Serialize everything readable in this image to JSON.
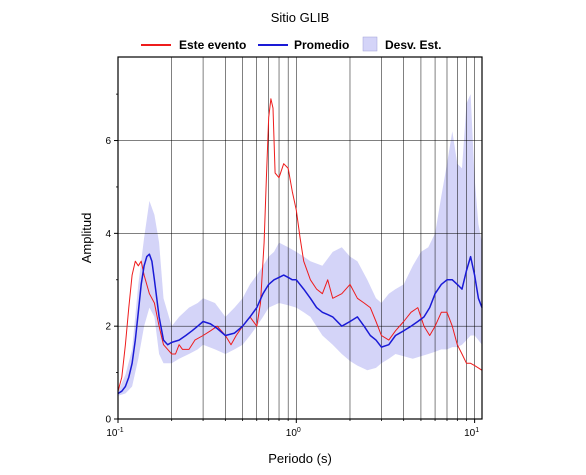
{
  "chart_data": {
    "type": "line",
    "title": "Sitio GLIB",
    "xlabel": "Periodo (s)",
    "ylabel": "Amplitud",
    "x_scale": "log",
    "xlim": [
      0.1,
      11
    ],
    "ylim": [
      0,
      7.8
    ],
    "x_ticks": [
      {
        "base": "10",
        "exp": "-1",
        "value": 0.1
      },
      {
        "base": "10",
        "exp": "0",
        "value": 1
      },
      {
        "base": "10",
        "exp": "1",
        "value": 10
      }
    ],
    "y_ticks": [
      "0",
      "2",
      "4",
      "6"
    ],
    "y_tick_values": [
      0,
      2,
      4,
      6
    ],
    "grid": true,
    "legend_position": "top",
    "colors": {
      "event": "#ee1c1c",
      "mean": "#1a1ad6",
      "band_fill": "#d4d4f8"
    },
    "series": [
      {
        "name": "Este evento",
        "style": "line",
        "x": [
          0.1,
          0.105,
          0.11,
          0.115,
          0.12,
          0.125,
          0.13,
          0.135,
          0.14,
          0.15,
          0.16,
          0.17,
          0.18,
          0.19,
          0.2,
          0.21,
          0.22,
          0.23,
          0.25,
          0.27,
          0.3,
          0.33,
          0.36,
          0.4,
          0.43,
          0.46,
          0.5,
          0.55,
          0.6,
          0.63,
          0.66,
          0.68,
          0.7,
          0.72,
          0.74,
          0.76,
          0.8,
          0.85,
          0.9,
          0.95,
          1.0,
          1.05,
          1.1,
          1.2,
          1.3,
          1.4,
          1.5,
          1.6,
          1.8,
          2.0,
          2.2,
          2.4,
          2.6,
          2.8,
          3.0,
          3.3,
          3.6,
          4.0,
          4.4,
          4.8,
          5.2,
          5.6,
          6.0,
          6.5,
          7.0,
          7.5,
          8.0,
          8.5,
          9.0,
          9.5,
          10.0,
          10.5,
          11.0
        ],
        "y": [
          0.6,
          0.9,
          1.6,
          2.4,
          3.1,
          3.4,
          3.3,
          3.4,
          3.1,
          2.7,
          2.5,
          2.0,
          1.6,
          1.5,
          1.4,
          1.4,
          1.6,
          1.5,
          1.5,
          1.7,
          1.8,
          1.9,
          2.0,
          1.8,
          1.6,
          1.8,
          2.0,
          2.2,
          2.0,
          2.5,
          3.8,
          5.2,
          6.5,
          6.9,
          6.7,
          5.3,
          5.2,
          5.5,
          5.4,
          4.9,
          4.5,
          3.9,
          3.4,
          3.0,
          2.8,
          2.7,
          3.0,
          2.6,
          2.7,
          2.9,
          2.6,
          2.5,
          2.4,
          2.1,
          1.8,
          1.7,
          1.9,
          2.1,
          2.3,
          2.4,
          2.0,
          1.8,
          2.0,
          2.3,
          2.3,
          2.0,
          1.6,
          1.4,
          1.2,
          1.2,
          1.15,
          1.1,
          1.05
        ]
      },
      {
        "name": "Promedio",
        "style": "line",
        "x": [
          0.1,
          0.105,
          0.11,
          0.115,
          0.12,
          0.125,
          0.13,
          0.135,
          0.14,
          0.145,
          0.15,
          0.155,
          0.16,
          0.17,
          0.18,
          0.19,
          0.2,
          0.22,
          0.24,
          0.26,
          0.28,
          0.3,
          0.33,
          0.36,
          0.4,
          0.45,
          0.5,
          0.55,
          0.6,
          0.65,
          0.7,
          0.75,
          0.8,
          0.85,
          0.9,
          0.95,
          1.0,
          1.1,
          1.2,
          1.3,
          1.4,
          1.5,
          1.6,
          1.8,
          2.0,
          2.2,
          2.4,
          2.6,
          2.8,
          3.0,
          3.3,
          3.6,
          4.0,
          4.4,
          4.8,
          5.2,
          5.6,
          6.0,
          6.5,
          7.0,
          7.5,
          8.0,
          8.5,
          9.0,
          9.5,
          10.0,
          10.5,
          11.0
        ],
        "y": [
          0.55,
          0.6,
          0.7,
          0.9,
          1.2,
          1.7,
          2.3,
          2.9,
          3.3,
          3.5,
          3.55,
          3.4,
          3.0,
          2.2,
          1.7,
          1.6,
          1.65,
          1.7,
          1.8,
          1.9,
          2.0,
          2.1,
          2.05,
          1.95,
          1.8,
          1.85,
          2.0,
          2.2,
          2.4,
          2.7,
          2.9,
          3.0,
          3.05,
          3.1,
          3.05,
          3.0,
          3.0,
          2.8,
          2.6,
          2.4,
          2.3,
          2.25,
          2.2,
          2.0,
          2.1,
          2.2,
          2.0,
          1.8,
          1.7,
          1.55,
          1.6,
          1.8,
          1.9,
          2.0,
          2.1,
          2.2,
          2.4,
          2.7,
          2.9,
          3.0,
          3.0,
          2.9,
          2.8,
          3.2,
          3.5,
          3.1,
          2.6,
          2.4
        ]
      },
      {
        "name": "Desv. Est.",
        "style": "band",
        "x": [
          0.1,
          0.11,
          0.12,
          0.13,
          0.14,
          0.15,
          0.16,
          0.17,
          0.18,
          0.2,
          0.22,
          0.25,
          0.28,
          0.3,
          0.35,
          0.4,
          0.45,
          0.5,
          0.55,
          0.6,
          0.65,
          0.7,
          0.75,
          0.8,
          0.9,
          1.0,
          1.1,
          1.2,
          1.4,
          1.6,
          1.8,
          2.0,
          2.2,
          2.5,
          2.8,
          3.0,
          3.3,
          3.6,
          4.0,
          4.5,
          5.0,
          5.5,
          6.0,
          6.5,
          7.0,
          7.5,
          8.0,
          8.5,
          9.0,
          9.5,
          10.0,
          10.5,
          11.0
        ],
        "low": [
          0.5,
          0.55,
          0.7,
          1.3,
          2.0,
          2.4,
          2.2,
          1.4,
          1.2,
          1.2,
          1.3,
          1.4,
          1.5,
          1.6,
          1.5,
          1.4,
          1.5,
          1.6,
          1.8,
          2.0,
          2.2,
          2.4,
          2.45,
          2.5,
          2.45,
          2.4,
          2.3,
          2.2,
          1.8,
          1.6,
          1.4,
          1.25,
          1.15,
          1.05,
          1.1,
          1.2,
          1.3,
          1.4,
          1.35,
          1.3,
          1.35,
          1.4,
          1.45,
          1.5,
          1.5,
          1.55,
          1.55,
          1.6,
          1.7,
          1.8,
          1.8,
          1.7,
          1.6
        ],
        "high": [
          0.6,
          0.95,
          1.5,
          2.9,
          3.9,
          4.7,
          4.4,
          3.8,
          2.6,
          2.0,
          2.2,
          2.4,
          2.5,
          2.6,
          2.5,
          2.2,
          2.4,
          2.6,
          2.9,
          3.1,
          3.3,
          3.5,
          3.6,
          3.8,
          3.7,
          3.6,
          3.5,
          3.4,
          3.3,
          3.6,
          3.7,
          3.5,
          3.4,
          3.0,
          2.6,
          2.5,
          2.7,
          2.8,
          2.9,
          3.3,
          3.6,
          3.7,
          4.0,
          4.8,
          5.5,
          6.2,
          5.5,
          5.4,
          6.8,
          7.0,
          5.2,
          4.2,
          3.8
        ]
      }
    ]
  }
}
